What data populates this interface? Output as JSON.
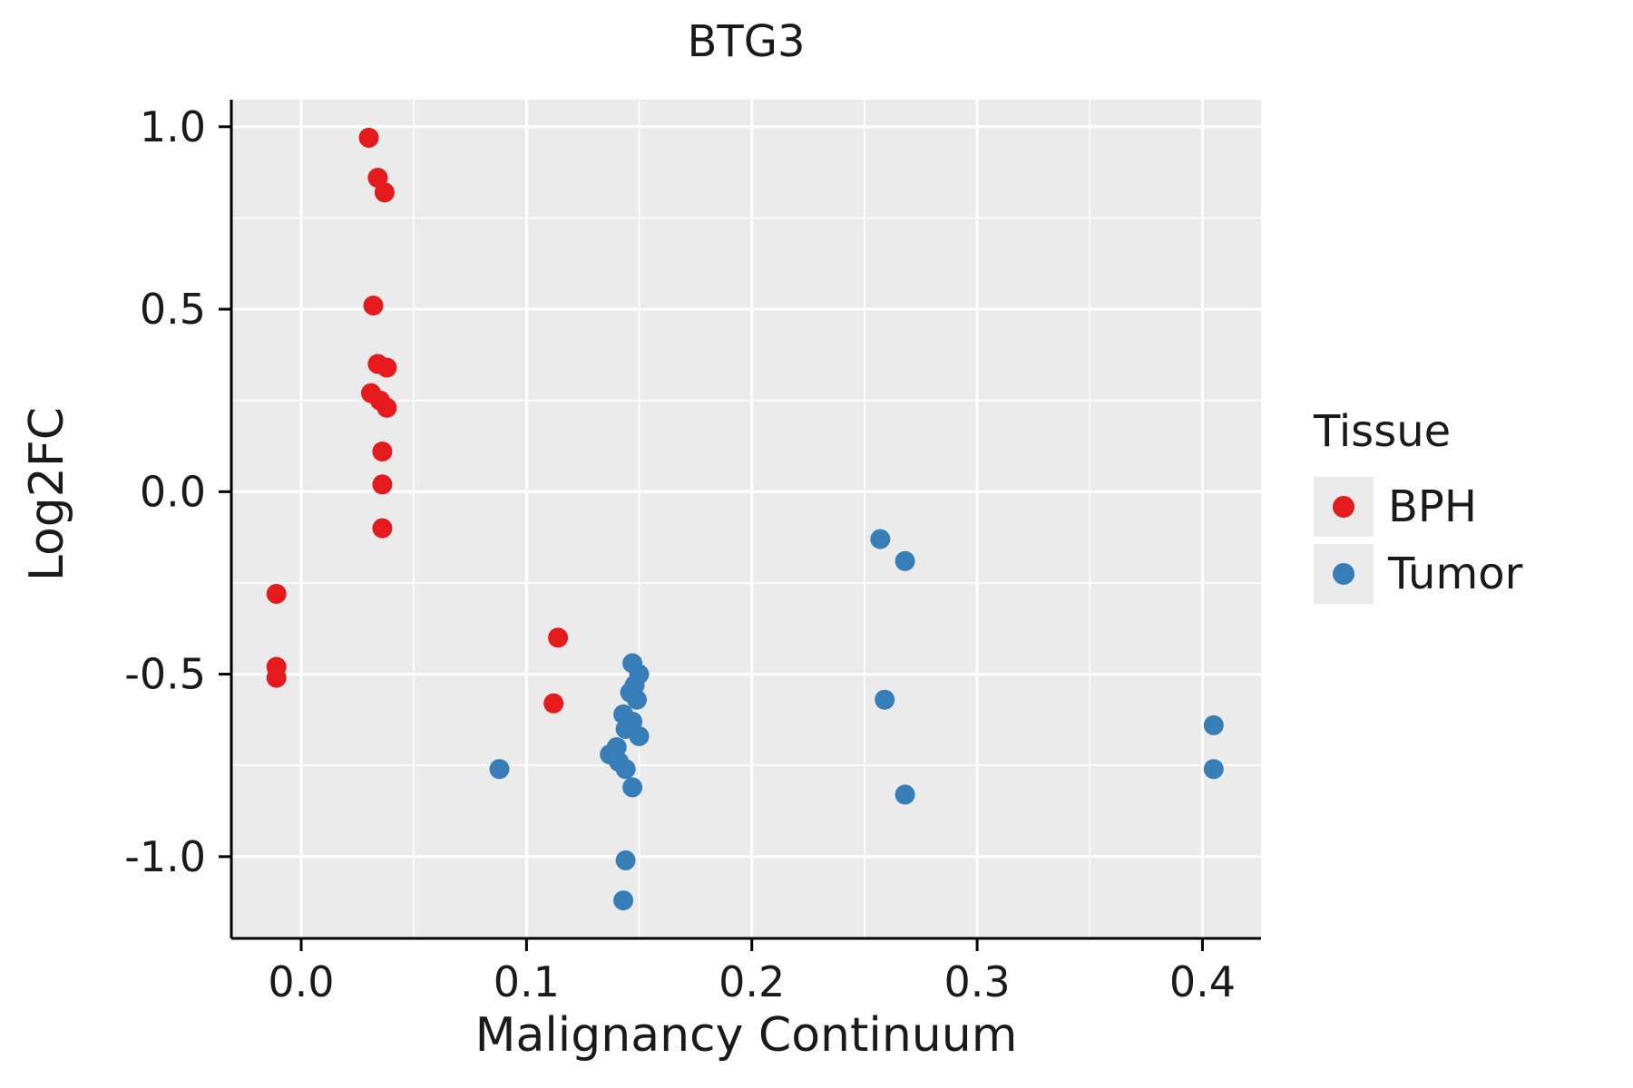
{
  "chart_data": {
    "type": "scatter",
    "title": "BTG3",
    "xlabel": "Malignancy Continuum",
    "ylabel": "Log2FC",
    "xlim": [
      -0.031,
      0.426
    ],
    "ylim": [
      -1.224,
      1.074
    ],
    "x_ticks": [
      0.0,
      0.1,
      0.2,
      0.3,
      0.4
    ],
    "x_tick_labels": [
      "0.0",
      "0.1",
      "0.2",
      "0.3",
      "0.4"
    ],
    "x_minor_ticks": [
      0.05,
      0.15,
      0.25,
      0.35
    ],
    "y_ticks": [
      -1.0,
      -0.5,
      0.0,
      0.5,
      1.0
    ],
    "y_tick_labels": [
      "-1.0",
      "-0.5",
      "0.0",
      "0.5",
      "1.0"
    ],
    "y_minor_ticks": [
      -0.75,
      -0.25,
      0.25,
      0.75
    ],
    "grid": true,
    "panel_color": "#EBEBEB",
    "grid_color": "#FFFFFF",
    "axis_color": "#000000",
    "legend_title": "Tissue",
    "legend_position": "right",
    "point_radius": 11,
    "series": [
      {
        "name": "BPH",
        "color": "#E41A1C",
        "points": [
          [
            -0.011,
            -0.28
          ],
          [
            -0.011,
            -0.48
          ],
          [
            -0.011,
            -0.51
          ],
          [
            0.03,
            0.97
          ],
          [
            0.034,
            0.86
          ],
          [
            0.037,
            0.82
          ],
          [
            0.032,
            0.51
          ],
          [
            0.034,
            0.35
          ],
          [
            0.038,
            0.34
          ],
          [
            0.031,
            0.27
          ],
          [
            0.035,
            0.25
          ],
          [
            0.038,
            0.23
          ],
          [
            0.036,
            0.11
          ],
          [
            0.036,
            0.02
          ],
          [
            0.036,
            -0.1
          ],
          [
            0.114,
            -0.4
          ],
          [
            0.112,
            -0.58
          ]
        ]
      },
      {
        "name": "Tumor",
        "color": "#377EB8",
        "points": [
          [
            0.088,
            -0.76
          ],
          [
            0.147,
            -0.47
          ],
          [
            0.15,
            -0.5
          ],
          [
            0.148,
            -0.53
          ],
          [
            0.146,
            -0.55
          ],
          [
            0.149,
            -0.57
          ],
          [
            0.143,
            -0.61
          ],
          [
            0.147,
            -0.63
          ],
          [
            0.144,
            -0.65
          ],
          [
            0.15,
            -0.67
          ],
          [
            0.14,
            -0.7
          ],
          [
            0.137,
            -0.72
          ],
          [
            0.141,
            -0.74
          ],
          [
            0.144,
            -0.76
          ],
          [
            0.147,
            -0.81
          ],
          [
            0.144,
            -1.01
          ],
          [
            0.143,
            -1.12
          ],
          [
            0.257,
            -0.13
          ],
          [
            0.268,
            -0.19
          ],
          [
            0.259,
            -0.57
          ],
          [
            0.268,
            -0.83
          ],
          [
            0.405,
            -0.64
          ],
          [
            0.405,
            -0.76
          ]
        ]
      }
    ]
  }
}
